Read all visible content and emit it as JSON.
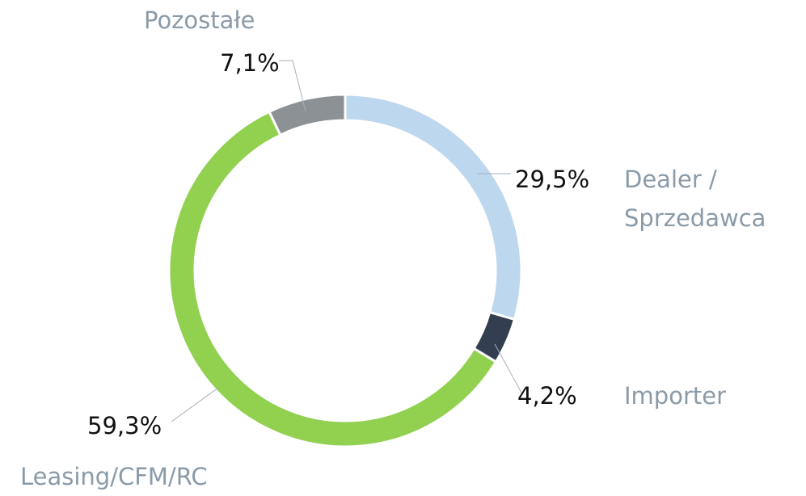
{
  "chart_data": {
    "type": "donut",
    "categories": [
      "Dealer / Sprzedawca",
      "Importer",
      "Leasing/CFM/RC",
      "Pozostałe"
    ],
    "values": [
      29.5,
      4.2,
      59.3,
      7.1
    ],
    "value_labels": [
      "29,5%",
      "4,2%",
      "59,3%",
      "7,1%"
    ],
    "colors": [
      "#bdd7ee",
      "#333f50",
      "#92d050",
      "#8c9196"
    ]
  }
}
